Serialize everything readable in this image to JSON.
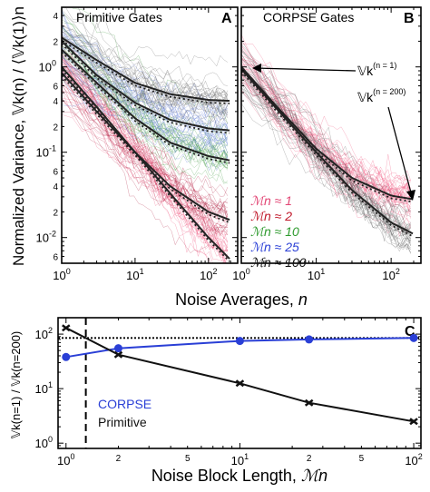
{
  "chart_data": [
    {
      "panel": "A",
      "type": "line",
      "title": "Primitive Gates",
      "panel_letter": "A",
      "xlabel": "Noise Averages, n",
      "x_label_main": "Noise Averages, ",
      "x_label_italic": "n",
      "ylabel": "Normalized Variance, 𝕍k(n) / ⟨𝕍k(1)⟩n",
      "x_scale": "log",
      "y_scale": "log",
      "xlim": [
        1,
        250
      ],
      "ylim": [
        0.005,
        5
      ],
      "x_ticks": [
        {
          "value": 1,
          "label": "10",
          "exp": "0"
        },
        {
          "value": 10,
          "label": "10",
          "exp": "1"
        },
        {
          "value": 100,
          "label": "10",
          "exp": "2"
        }
      ],
      "y_ticks": [
        {
          "value": 0.01,
          "label": "10",
          "exp": "-2"
        },
        {
          "value": 0.1,
          "label": "10",
          "exp": "-1"
        },
        {
          "value": 1,
          "label": "10",
          "exp": "0"
        }
      ],
      "y_minor_labels": [
        {
          "value": 4,
          "label": "4"
        },
        {
          "value": 2,
          "label": "2"
        },
        {
          "value": 0.6,
          "label": "6"
        },
        {
          "value": 0.4,
          "label": "4"
        },
        {
          "value": 0.2,
          "label": "2"
        },
        {
          "value": 0.06,
          "label": "6"
        },
        {
          "value": 0.04,
          "label": "4"
        },
        {
          "value": 0.02,
          "label": "2"
        },
        {
          "value": 0.006,
          "label": "6"
        }
      ],
      "series": [
        {
          "block": 1,
          "color": "#f0507a",
          "plateau": 0.0,
          "model": [
            [
              1,
              1.0
            ],
            [
              3,
              0.34
            ],
            [
              10,
              0.1
            ],
            [
              30,
              0.033
            ],
            [
              100,
              0.01
            ],
            [
              200,
              0.0055
            ]
          ]
        },
        {
          "block": 2,
          "color": "#b02040",
          "plateau": 0.006,
          "model": [
            [
              1,
              0.85
            ],
            [
              3,
              0.3
            ],
            [
              10,
              0.1
            ],
            [
              30,
              0.04
            ],
            [
              100,
              0.02
            ],
            [
              200,
              0.016
            ]
          ]
        },
        {
          "block": 10,
          "color": "#3d9a3d",
          "plateau": 0.075,
          "model": [
            [
              1,
              1.6
            ],
            [
              3,
              0.65
            ],
            [
              10,
              0.25
            ],
            [
              30,
              0.13
            ],
            [
              100,
              0.09
            ],
            [
              200,
              0.08
            ]
          ]
        },
        {
          "block": 25,
          "color": "#5a78d8",
          "plateau": 0.18,
          "model": [
            [
              1,
              2.0
            ],
            [
              3,
              0.8
            ],
            [
              10,
              0.38
            ],
            [
              30,
              0.24
            ],
            [
              100,
              0.19
            ],
            [
              200,
              0.18
            ]
          ]
        },
        {
          "block": 100,
          "color": "#606060",
          "plateau": 0.4,
          "model": [
            [
              1,
              2.2
            ],
            [
              3,
              1.2
            ],
            [
              10,
              0.65
            ],
            [
              30,
              0.48
            ],
            [
              100,
              0.41
            ],
            [
              200,
              0.4
            ]
          ]
        }
      ]
    },
    {
      "panel": "B",
      "type": "line",
      "title": "CORPSE Gates",
      "panel_letter": "B",
      "x_scale": "log",
      "y_scale": "log",
      "xlim": [
        1,
        250
      ],
      "ylim": [
        0.005,
        5
      ],
      "x_ticks": [
        {
          "value": 1,
          "label": "10",
          "exp": "0"
        },
        {
          "value": 10,
          "label": "10",
          "exp": "1"
        },
        {
          "value": 100,
          "label": "10",
          "exp": "2"
        }
      ],
      "annotations": [
        {
          "label": "𝕍k",
          "sup": "(n = 1)",
          "target": [
            1,
            1.0
          ]
        },
        {
          "label": "𝕍k",
          "sup": "(n = 200)",
          "target": [
            200,
            0.025
          ]
        }
      ],
      "legend": [
        {
          "label": "ℳn ≈ 1",
          "color": "#f0507a"
        },
        {
          "label": "ℳn ≈ 2",
          "color": "#c0182a"
        },
        {
          "label": "ℳn ≈ 10",
          "color": "#2e9a2e"
        },
        {
          "label": "ℳn ≈ 25",
          "color": "#2a3fd6"
        },
        {
          "label": "ℳn ≈ 100",
          "color": "#111111"
        }
      ],
      "series": [
        {
          "block": 1,
          "color": "#f0507a",
          "model": [
            [
              1,
              1.0
            ],
            [
              3,
              0.34
            ],
            [
              10,
              0.11
            ],
            [
              30,
              0.05
            ],
            [
              100,
              0.031
            ],
            [
              200,
              0.028
            ]
          ]
        },
        {
          "block": 100,
          "color": "#606060",
          "model": [
            [
              1,
              0.95
            ],
            [
              3,
              0.32
            ],
            [
              10,
              0.1
            ],
            [
              30,
              0.036
            ],
            [
              100,
              0.015
            ],
            [
              200,
              0.011
            ]
          ]
        }
      ]
    },
    {
      "panel": "C",
      "type": "line",
      "panel_letter": "C",
      "xlabel": "Noise Block Length, ℳn",
      "x_label_main": "Noise Block Length, ",
      "x_label_italic": "ℳn",
      "ylabel": "𝕍k(n=1) / 𝕍k(n=200)",
      "x_scale": "log",
      "y_scale": "log",
      "xlim": [
        0.9,
        110
      ],
      "ylim": [
        0.8,
        200
      ],
      "x_ticks": [
        {
          "value": 1,
          "label": "10",
          "exp": "0"
        },
        {
          "value": 10,
          "label": "10",
          "exp": "1"
        },
        {
          "value": 100,
          "label": "10",
          "exp": "2"
        }
      ],
      "x_minor_labels": [
        {
          "value": 2,
          "label": "2"
        },
        {
          "value": 5,
          "label": "5"
        },
        {
          "value": 25,
          "label": "2"
        },
        {
          "value": 50,
          "label": "5"
        }
      ],
      "y_ticks": [
        {
          "value": 1,
          "label": "10",
          "exp": "0"
        },
        {
          "value": 10,
          "label": "10",
          "exp": "1"
        },
        {
          "value": 100,
          "label": "10",
          "exp": "2"
        }
      ],
      "vline_x": 1.3,
      "hline_y": 85,
      "legend": [
        {
          "label": "CORPSE",
          "color": "#2a3fd6"
        },
        {
          "label": "Primitive",
          "color": "#111111"
        }
      ],
      "series": [
        {
          "name": "CORPSE",
          "color": "#2a3fd6",
          "marker": "circle",
          "x": [
            1,
            2,
            10,
            25,
            100
          ],
          "y": [
            38,
            55,
            75,
            80,
            85
          ]
        },
        {
          "name": "Primitive",
          "color": "#111111",
          "marker": "x",
          "x": [
            1,
            2,
            10,
            25,
            100
          ],
          "y": [
            130,
            42,
            12.5,
            5.5,
            2.5
          ]
        }
      ]
    }
  ]
}
